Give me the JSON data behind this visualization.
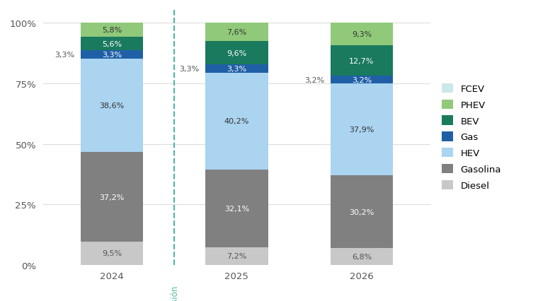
{
  "categories": [
    "2024",
    "2025",
    "2026"
  ],
  "segments": [
    {
      "label": "Diesel",
      "color": "#c8c8c8",
      "values": [
        9.5,
        7.2,
        6.8
      ],
      "text_color": "#555555"
    },
    {
      "label": "Gasolina",
      "color": "#808080",
      "values": [
        37.2,
        32.1,
        30.2
      ],
      "text_color": "#ffffff"
    },
    {
      "label": "HEV",
      "color": "#aad4f0",
      "values": [
        38.6,
        40.2,
        37.9
      ],
      "text_color": "#333333"
    },
    {
      "label": "Gas",
      "color": "#1f5fa6",
      "values": [
        3.3,
        3.3,
        3.2
      ],
      "text_color": "#ffffff"
    },
    {
      "label": "BEV",
      "color": "#1a7a5e",
      "values": [
        5.6,
        9.6,
        12.7
      ],
      "text_color": "#ffffff"
    },
    {
      "label": "PHEV",
      "color": "#90c97a",
      "values": [
        5.8,
        7.6,
        9.3
      ],
      "text_color": "#333333"
    },
    {
      "label": "FCEV",
      "color": "#cce8e8",
      "values": [
        0.0,
        0.0,
        0.0
      ],
      "text_color": "#333333"
    }
  ],
  "legend_order": [
    "FCEV",
    "PHEV",
    "BEV",
    "Gas",
    "HEV",
    "Gasolina",
    "Diesel"
  ],
  "legend_colors": {
    "FCEV": "#cce8e8",
    "PHEV": "#90c97a",
    "BEV": "#1a7a5e",
    "Gas": "#1f5fa6",
    "HEV": "#aad4f0",
    "Gasolina": "#808080",
    "Diesel": "#c8c8c8"
  },
  "previsión_label": "Previsión",
  "previsión_color": "#4db89e",
  "bg_color": "#ffffff",
  "yticks": [
    0,
    25,
    50,
    75,
    100
  ],
  "ylim": [
    0,
    106
  ],
  "bar_width": 0.5,
  "label_fontsize": 8.0,
  "axis_label_fontsize": 9.5,
  "legend_fontsize": 9.5,
  "grid_color": "#dddddd"
}
